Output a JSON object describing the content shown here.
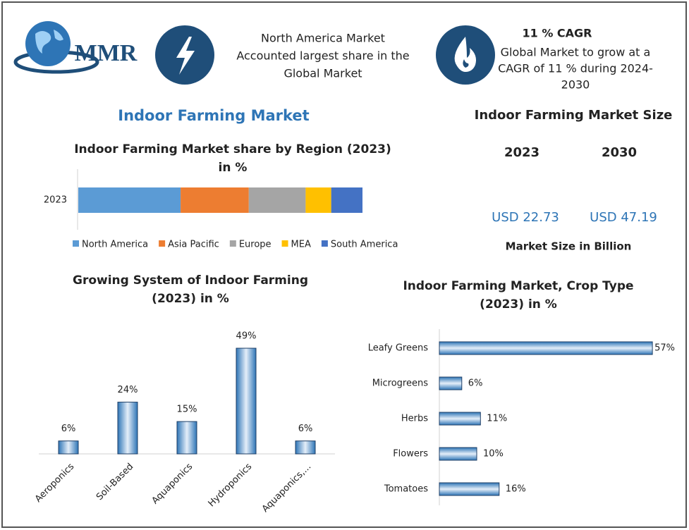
{
  "header": {
    "logo": "MMR",
    "fact_lines": [
      "North America Market",
      "Accounted largest share in the",
      "Global Market"
    ],
    "cagr_title": "11 % CAGR",
    "cagr_lines": [
      "Global Market to grow at a",
      "CAGR of 11 % during 2024-",
      "2030"
    ],
    "main_title": "Indoor Farming Market"
  },
  "market_size": {
    "title": "Indoor Farming Market Size",
    "years": [
      "2023",
      "2030"
    ],
    "values": [
      "USD 22.73",
      "USD 47.19"
    ],
    "note": "Market Size in Billion"
  },
  "chart_data": [
    {
      "type": "stacked-hbar",
      "title": [
        "Indoor Farming Market share by Region (2023)",
        "in %"
      ],
      "categories": [
        "2023"
      ],
      "xlim": [
        0,
        100
      ],
      "series": [
        {
          "name": "North America",
          "color": "#5b9bd5",
          "values": [
            36
          ]
        },
        {
          "name": "Asia Pacific",
          "color": "#ed7d31",
          "values": [
            24
          ]
        },
        {
          "name": "Europe",
          "color": "#a5a5a5",
          "values": [
            20
          ]
        },
        {
          "name": "MEA",
          "color": "#ffc000",
          "values": [
            9
          ]
        },
        {
          "name": "South America",
          "color": "#4472c4",
          "values": [
            11
          ]
        }
      ]
    },
    {
      "type": "bar",
      "title": [
        "Growing System of Indoor Farming",
        "(2023) in %"
      ],
      "categories": [
        "Aeroponics",
        "Soil-Based",
        "Aquaponics",
        "Hydroponics",
        "Aquaponics,..."
      ],
      "values": [
        6,
        24,
        15,
        49,
        6
      ],
      "value_labels": [
        "6%",
        "24%",
        "15%",
        "49%",
        "6%"
      ],
      "color": "#2e75b6",
      "ylim": [
        0,
        50
      ]
    },
    {
      "type": "hbar",
      "title": [
        "Indoor Farming Market, Crop Type",
        "(2023) in %"
      ],
      "categories": [
        "Leafy Greens",
        "Microgreens",
        "Herbs",
        "Flowers",
        "Tomatoes"
      ],
      "values": [
        57,
        6,
        11,
        10,
        16
      ],
      "value_labels": [
        "57%",
        "6%",
        "11%",
        "10%",
        "16%"
      ],
      "color": "#2e75b6",
      "xlim": [
        0,
        60
      ]
    }
  ]
}
